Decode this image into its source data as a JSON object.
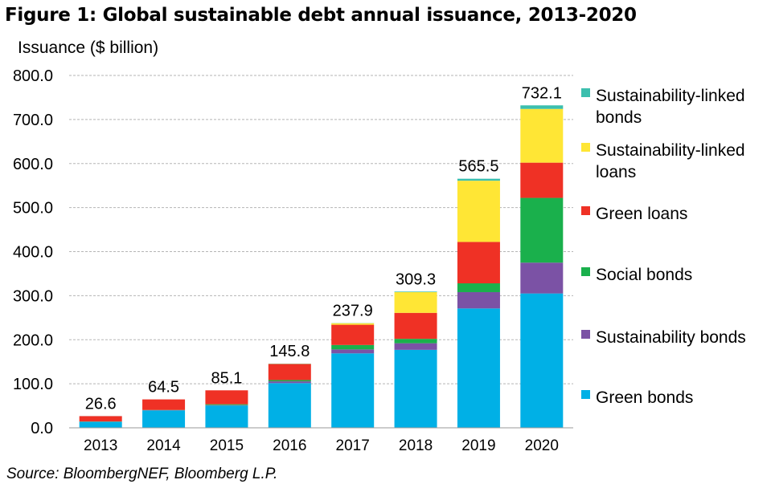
{
  "page": {
    "title": "Figure 1: Global sustainable debt annual issuance, 2013-2020",
    "source": "Source: BloombergNEF, Bloomberg L.P."
  },
  "chart_data": {
    "type": "bar",
    "stacked": true,
    "title": "Figure 1: Global sustainable debt annual issuance, 2013-2020",
    "xlabel": "",
    "ylabel": "Issuance ($ billion)",
    "ylim": [
      0,
      800
    ],
    "yticks": [
      0,
      100,
      200,
      300,
      400,
      500,
      600,
      700,
      800
    ],
    "ytick_labels": [
      "0.0",
      "100.0",
      "200.0",
      "300.0",
      "400.0",
      "500.0",
      "600.0",
      "700.0",
      "800.0"
    ],
    "grid": true,
    "legend_position": "right",
    "categories": [
      "2013",
      "2014",
      "2015",
      "2016",
      "2017",
      "2018",
      "2019",
      "2020"
    ],
    "totals": [
      26.6,
      64.5,
      85.1,
      145.8,
      237.9,
      309.3,
      565.5,
      732.1
    ],
    "total_labels": [
      "26.6",
      "64.5",
      "85.1",
      "145.8",
      "237.9",
      "309.3",
      "565.5",
      "732.1"
    ],
    "series": [
      {
        "name": "Green bonds",
        "legend_lines": [
          "Green bonds"
        ],
        "color": "#00b0e6",
        "values": [
          13.5,
          39.5,
          50.5,
          101.5,
          169,
          177,
          271,
          305
        ]
      },
      {
        "name": "Sustainability bonds",
        "legend_lines": [
          "Sustainability bonds"
        ],
        "color": "#7b52a5",
        "values": [
          0.5,
          0.5,
          1,
          4,
          9,
          15,
          37,
          70
        ]
      },
      {
        "name": "Social bonds",
        "legend_lines": [
          "Social bonds"
        ],
        "color": "#1ab04c",
        "values": [
          0.5,
          0.5,
          2,
          3,
          10,
          10,
          20,
          147
        ]
      },
      {
        "name": "Green loans",
        "legend_lines": [
          "Green loans"
        ],
        "color": "#ef3125",
        "values": [
          12,
          24,
          31.6,
          36.3,
          46,
          59,
          94,
          80
        ]
      },
      {
        "name": "Sustainability-linked loans",
        "legend_lines": [
          "Sustainability-linked",
          "loans"
        ],
        "color": "#ffe635",
        "values": [
          0,
          0,
          0,
          0.5,
          3.5,
          47,
          139,
          122
        ]
      },
      {
        "name": "Sustainability-linked bonds",
        "legend_lines": [
          "Sustainability-linked",
          "bonds"
        ],
        "color": "#3cbfae",
        "values": [
          0.1,
          0,
          0,
          0.5,
          0.4,
          1.3,
          4.5,
          8.1
        ]
      }
    ]
  }
}
